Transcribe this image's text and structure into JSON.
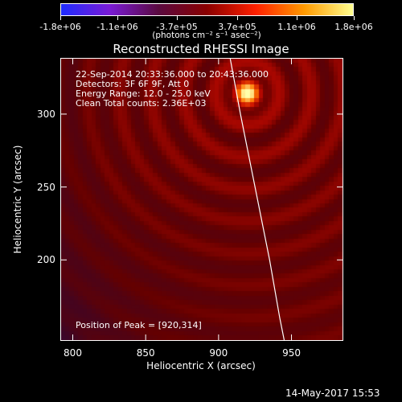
{
  "colorbar": {
    "tick_labels": [
      "-1.8e+06",
      "-1.1e+06",
      "-3.7e+05",
      "3.7e+05",
      "1.1e+06",
      "1.8e+06"
    ],
    "tick_values": [
      -1800000,
      -1100000,
      -370000,
      370000,
      1100000,
      1800000
    ],
    "unit": "(photons cm⁻² s⁻¹ asec⁻²)",
    "range": [
      -1800000,
      1800000
    ],
    "colors": [
      "#1e2cff",
      "#7a1bd6",
      "#5a0a40",
      "#8a0000",
      "#ff2000",
      "#ff9a00",
      "#ffff90"
    ]
  },
  "chart_data": {
    "type": "heatmap",
    "title": "Reconstructed RHESSI Image",
    "xlabel": "Heliocentric X (arcsec)",
    "ylabel": "Heliocentric Y (arcsec)",
    "xlim": [
      792,
      985
    ],
    "ylim": [
      145,
      338
    ],
    "xticks": [
      800,
      850,
      900,
      950
    ],
    "yticks": [
      200,
      250,
      300
    ],
    "source": {
      "x": 920,
      "y": 314,
      "peak": 1800000
    },
    "limb_curve": [
      [
        908,
        338
      ],
      [
        915,
        300
      ],
      [
        925,
        250
      ],
      [
        935,
        200
      ],
      [
        942,
        160
      ],
      [
        945,
        145
      ]
    ],
    "annotations": [
      "22-Sep-2014 20:33:36.000 to 20:43:36.000",
      "Detectors: 3F 6F 9F, Att 0",
      "Energy Range: 12.0 - 25.0 keV",
      "Clean    Total counts: 2.36E+03"
    ],
    "peak_label": "Position of Peak = [920,314]"
  },
  "footer": {
    "timestamp": "14-May-2017 15:53"
  }
}
